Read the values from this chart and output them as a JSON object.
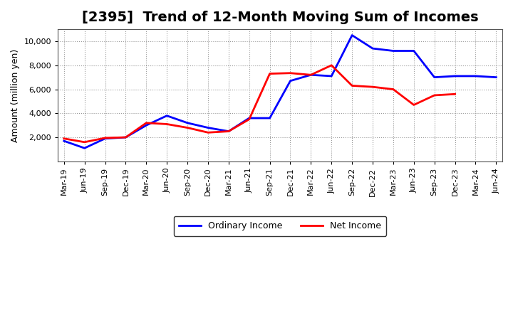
{
  "title": "[2395]  Trend of 12-Month Moving Sum of Incomes",
  "ylabel": "Amount (million yen)",
  "x_labels": [
    "Mar-19",
    "Jun-19",
    "Sep-19",
    "Dec-19",
    "Mar-20",
    "Jun-20",
    "Sep-20",
    "Dec-20",
    "Mar-21",
    "Jun-21",
    "Sep-21",
    "Dec-21",
    "Mar-22",
    "Jun-22",
    "Sep-22",
    "Dec-22",
    "Mar-23",
    "Jun-23",
    "Sep-23",
    "Dec-23",
    "Mar-24",
    "Jun-24"
  ],
  "ordinary_income": [
    1700,
    1100,
    1900,
    2000,
    3000,
    3800,
    3200,
    2800,
    2500,
    3600,
    3600,
    6700,
    7200,
    7100,
    10500,
    9400,
    9200,
    9200,
    7000,
    7100,
    7100,
    7000
  ],
  "net_income": [
    1900,
    1600,
    1950,
    2000,
    3200,
    3100,
    2800,
    2400,
    2500,
    3500,
    7300,
    7350,
    7200,
    8000,
    6300,
    6200,
    6000,
    4700,
    5500,
    5600,
    null,
    null
  ],
  "ordinary_color": "#0000ff",
  "net_color": "#ff0000",
  "background_color": "#ffffff",
  "plot_bg_color": "#ffffff",
  "grid_color": "#999999",
  "ylim": [
    0,
    11000
  ],
  "yticks": [
    2000,
    4000,
    6000,
    8000,
    10000
  ],
  "legend_labels": [
    "Ordinary Income",
    "Net Income"
  ],
  "title_fontsize": 14,
  "axis_fontsize": 9,
  "tick_fontsize": 8
}
